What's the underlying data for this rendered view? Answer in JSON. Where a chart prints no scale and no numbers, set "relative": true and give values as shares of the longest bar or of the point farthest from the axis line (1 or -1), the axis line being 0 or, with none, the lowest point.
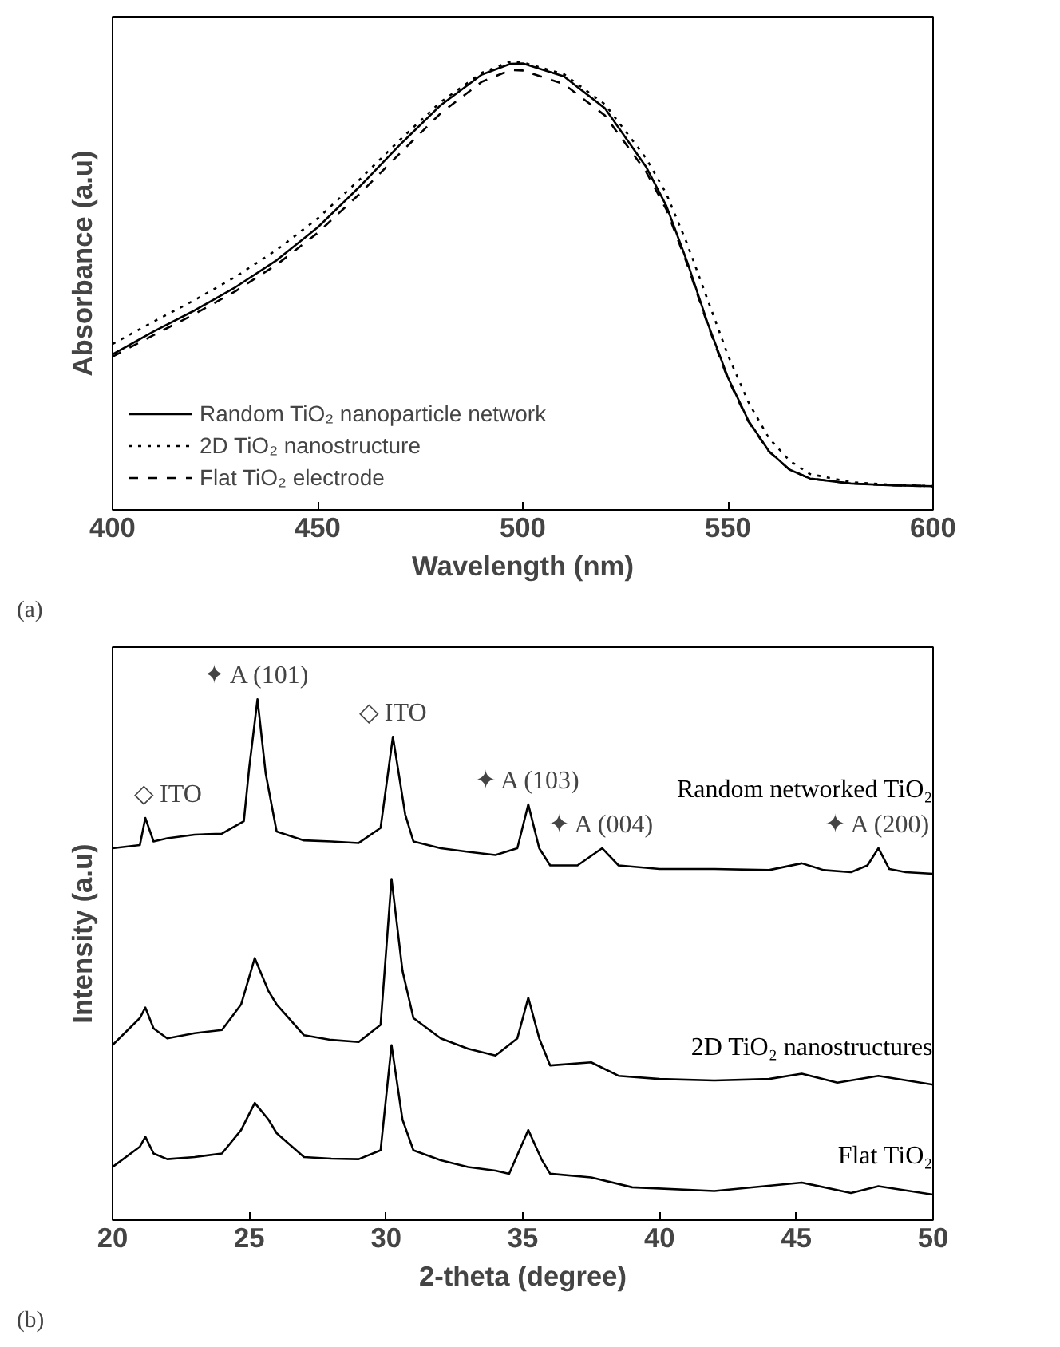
{
  "chart_data": [
    {
      "type": "line",
      "xlabel": "Wavelength (nm)",
      "ylabel": "Absorbance (a.u)",
      "relative": true,
      "xlim": [
        400,
        600
      ],
      "xticks": [
        400,
        450,
        500,
        550,
        600
      ],
      "legend": "bottom left",
      "grid": false,
      "x": [
        400,
        410,
        420,
        430,
        440,
        450,
        460,
        470,
        480,
        490,
        497,
        500,
        510,
        520,
        530,
        535,
        540,
        545,
        550,
        555,
        560,
        565,
        570,
        580,
        590,
        600
      ],
      "series": [
        {
          "name": "Random TiO₂ nanoparticle network",
          "color": "#000000",
          "line_style": "solid",
          "values": [
            0.347,
            0.398,
            0.445,
            0.497,
            0.557,
            0.63,
            0.719,
            0.814,
            0.903,
            0.971,
            0.995,
            0.996,
            0.967,
            0.896,
            0.766,
            0.678,
            0.555,
            0.418,
            0.295,
            0.199,
            0.131,
            0.09,
            0.07,
            0.059,
            0.055,
            0.053
          ]
        },
        {
          "name": "2D TiO₂ nanostructure",
          "color": "#000000",
          "line_style": "dotted",
          "values": [
            0.37,
            0.42,
            0.468,
            0.52,
            0.58,
            0.65,
            0.735,
            0.825,
            0.91,
            0.975,
            1.0,
            0.998,
            0.972,
            0.905,
            0.785,
            0.705,
            0.595,
            0.47,
            0.345,
            0.24,
            0.16,
            0.11,
            0.08,
            0.062,
            0.056,
            0.053
          ]
        },
        {
          "name": "Flat TiO₂ electrode",
          "color": "#000000",
          "line_style": "dashed",
          "values": [
            0.342,
            0.39,
            0.437,
            0.488,
            0.547,
            0.618,
            0.703,
            0.795,
            0.885,
            0.955,
            0.981,
            0.98,
            0.95,
            0.88,
            0.755,
            0.67,
            0.55,
            0.415,
            0.292,
            0.197,
            0.13,
            0.09,
            0.07,
            0.059,
            0.055,
            0.053
          ]
        }
      ],
      "annotations": [
        "(a)"
      ]
    },
    {
      "type": "line",
      "xlabel": "2-theta (degree)",
      "ylabel": "Intensity (a.u)",
      "relative": true,
      "xlim": [
        20,
        50
      ],
      "xticks": [
        20,
        25,
        30,
        35,
        40,
        45,
        50
      ],
      "legend": false,
      "grid": false,
      "series": [
        {
          "name": "Random networked TiO₂",
          "color": "#000000",
          "line_style": "solid",
          "x": [
            20,
            21,
            21.2,
            21.5,
            22,
            23,
            24,
            24.8,
            25.0,
            25.3,
            25.6,
            26,
            27,
            28,
            29,
            29.8,
            30.25,
            30.7,
            31,
            32,
            33,
            34,
            34.8,
            35.2,
            35.6,
            36,
            37,
            37.9,
            38.5,
            40,
            42,
            44,
            45.2,
            46,
            47,
            47.6,
            48.0,
            48.4,
            49,
            50
          ],
          "values": [
            0.714,
            0.72,
            0.772,
            0.727,
            0.733,
            0.74,
            0.742,
            0.766,
            0.87,
            1.0,
            0.857,
            0.746,
            0.729,
            0.727,
            0.724,
            0.753,
            0.928,
            0.779,
            0.727,
            0.714,
            0.707,
            0.701,
            0.714,
            0.798,
            0.714,
            0.681,
            0.681,
            0.714,
            0.681,
            0.674,
            0.674,
            0.672,
            0.685,
            0.672,
            0.668,
            0.681,
            0.714,
            0.674,
            0.668,
            0.665
          ]
        },
        {
          "name": "2D TiO₂ nanostructures",
          "color": "#000000",
          "line_style": "solid",
          "x": [
            20,
            21,
            21.2,
            21.5,
            22,
            23,
            24,
            24.7,
            25.2,
            25.7,
            26,
            27,
            28,
            29,
            29.8,
            30.2,
            30.6,
            31,
            32,
            33,
            34,
            34.8,
            35.2,
            35.6,
            36,
            37.5,
            38.5,
            40,
            42,
            44,
            45.2,
            46.5,
            48,
            50
          ],
          "values": [
            0.336,
            0.388,
            0.408,
            0.368,
            0.349,
            0.359,
            0.365,
            0.414,
            0.503,
            0.44,
            0.414,
            0.355,
            0.346,
            0.342,
            0.375,
            0.655,
            0.479,
            0.388,
            0.349,
            0.329,
            0.316,
            0.349,
            0.427,
            0.349,
            0.297,
            0.303,
            0.277,
            0.271,
            0.268,
            0.271,
            0.281,
            0.264,
            0.277,
            0.26
          ]
        },
        {
          "name": "Flat TiO₂",
          "color": "#000000",
          "line_style": "solid",
          "x": [
            20,
            21,
            21.2,
            21.5,
            22,
            23,
            24,
            24.7,
            25.2,
            25.7,
            26,
            27,
            28,
            29,
            29.8,
            30.2,
            30.6,
            31,
            32,
            33,
            34,
            34.5,
            35.2,
            35.7,
            36,
            37.5,
            39,
            42,
            45.2,
            47,
            48,
            50
          ],
          "values": [
            0.102,
            0.141,
            0.16,
            0.128,
            0.117,
            0.121,
            0.128,
            0.173,
            0.225,
            0.193,
            0.167,
            0.121,
            0.118,
            0.117,
            0.134,
            0.336,
            0.193,
            0.134,
            0.115,
            0.102,
            0.095,
            0.089,
            0.173,
            0.115,
            0.089,
            0.082,
            0.063,
            0.056,
            0.072,
            0.052,
            0.065,
            0.049
          ]
        }
      ],
      "annotations": [
        {
          "text": "◇ ITO",
          "x": 21.2,
          "y": 0.772
        },
        {
          "text": "✦ A (101)",
          "x": 25.3,
          "y": 1.0
        },
        {
          "text": "◇ ITO",
          "x": 30.25,
          "y": 0.928
        },
        {
          "text": "✦ A (103)",
          "x": 35.2,
          "y": 0.798
        },
        {
          "text": "✦ A (004)",
          "x": 37.9,
          "y": 0.714
        },
        {
          "text": "✦ A (200)",
          "x": 48.0,
          "y": 0.714
        },
        "(b)"
      ]
    }
  ]
}
